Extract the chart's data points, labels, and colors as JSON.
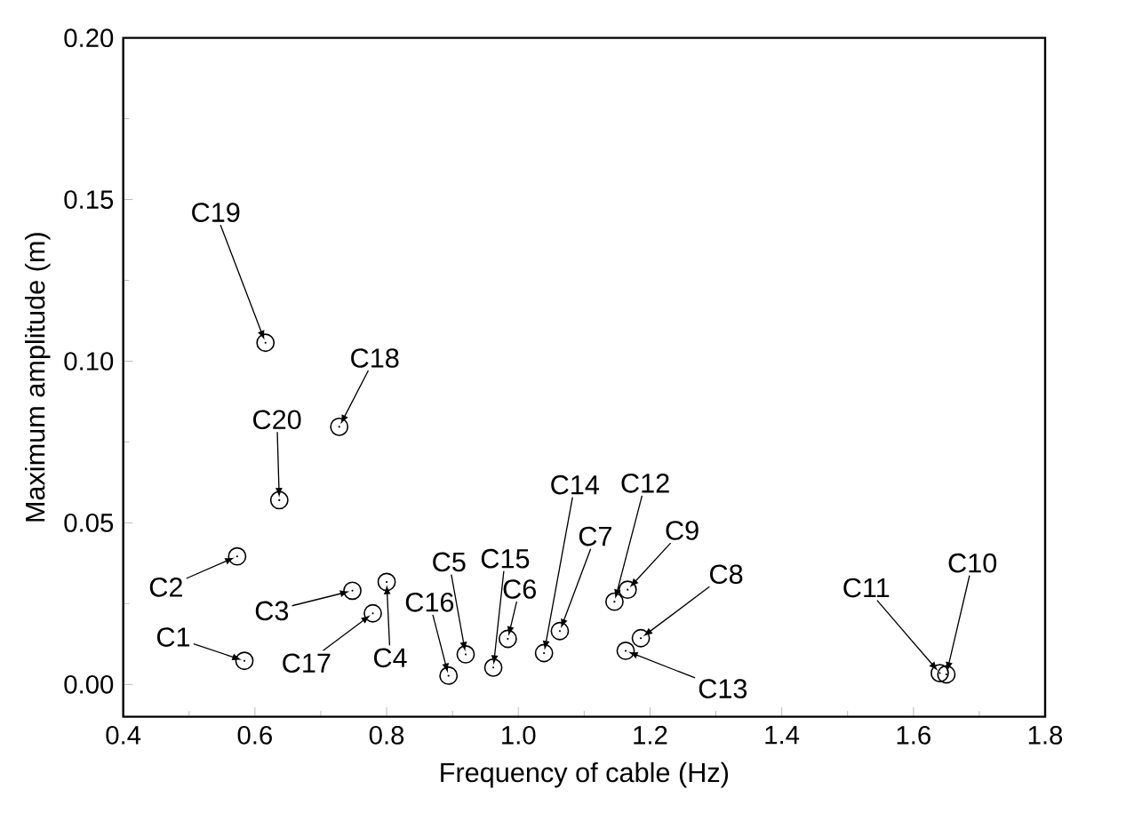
{
  "chart_data": {
    "type": "scatter",
    "xlabel": "Frequency of cable (Hz)",
    "ylabel": "Maximum amplitude (m)",
    "x": [
      0.584,
      0.573,
      0.748,
      0.8,
      0.92,
      0.984,
      1.063,
      1.186,
      1.166,
      1.65,
      1.64,
      1.146,
      1.163,
      1.039,
      0.962,
      0.894,
      0.779,
      0.728,
      0.616,
      0.637
    ],
    "values": [
      0.0073,
      0.0396,
      0.029,
      0.0317,
      0.0093,
      0.0141,
      0.0165,
      0.0143,
      0.0293,
      0.0031,
      0.0035,
      0.0256,
      0.0104,
      0.0097,
      0.0052,
      0.0027,
      0.022,
      0.0797,
      0.1057,
      0.057
    ],
    "color": "#000000",
    "marker": "circle",
    "annotations": [
      {
        "text": "C1",
        "x": 0.584,
        "y": 0.0073
      },
      {
        "text": "C2",
        "x": 0.573,
        "y": 0.0396
      },
      {
        "text": "C3",
        "x": 0.748,
        "y": 0.029
      },
      {
        "text": "C4",
        "x": 0.8,
        "y": 0.0317
      },
      {
        "text": "C5",
        "x": 0.92,
        "y": 0.0093
      },
      {
        "text": "C6",
        "x": 0.984,
        "y": 0.0141
      },
      {
        "text": "C7",
        "x": 1.063,
        "y": 0.0165
      },
      {
        "text": "C8",
        "x": 1.186,
        "y": 0.0143
      },
      {
        "text": "C9",
        "x": 1.166,
        "y": 0.0293
      },
      {
        "text": "C10",
        "x": 1.65,
        "y": 0.0031
      },
      {
        "text": "C11",
        "x": 1.64,
        "y": 0.0035
      },
      {
        "text": "C12",
        "x": 1.146,
        "y": 0.0256
      },
      {
        "text": "C13",
        "x": 1.163,
        "y": 0.0104
      },
      {
        "text": "C14",
        "x": 1.039,
        "y": 0.0097
      },
      {
        "text": "C15",
        "x": 0.962,
        "y": 0.0052
      },
      {
        "text": "C16",
        "x": 0.894,
        "y": 0.0027
      },
      {
        "text": "C17",
        "x": 0.779,
        "y": 0.022
      },
      {
        "text": "C18",
        "x": 0.728,
        "y": 0.0797
      },
      {
        "text": "C19",
        "x": 0.616,
        "y": 0.1057
      },
      {
        "text": "C20",
        "x": 0.637,
        "y": 0.057
      }
    ],
    "xlim": [
      0.4,
      1.8
    ],
    "xticks": [
      {
        "value": 0.4,
        "label": "0.4"
      },
      {
        "value": 0.6,
        "label": "0.6"
      },
      {
        "value": 0.8,
        "label": "0.8"
      },
      {
        "value": 1.0,
        "label": "1.0"
      },
      {
        "value": 1.2,
        "label": "1.2"
      },
      {
        "value": 1.4,
        "label": "1.4"
      },
      {
        "value": 1.6,
        "label": "1.6"
      },
      {
        "value": 1.8,
        "label": "1.8"
      }
    ],
    "ylim": [
      -0.01,
      0.2
    ],
    "yticks": [
      {
        "value": 0,
        "label": "0.00"
      },
      {
        "value": 0.05,
        "label": "0.05"
      },
      {
        "value": 0.1,
        "label": "0.10"
      },
      {
        "value": 0.15,
        "label": "0.15"
      },
      {
        "value": 0.2,
        "label": "0.20"
      }
    ]
  }
}
